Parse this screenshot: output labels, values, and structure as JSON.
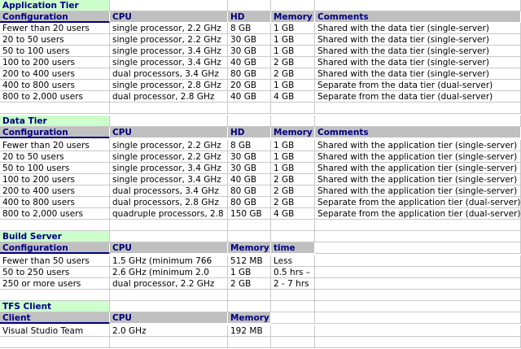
{
  "app_tier": {
    "title": "Application Tier",
    "headers": [
      "Configuration",
      "CPU",
      "HD",
      "Memory",
      "Comments"
    ],
    "rows": [
      [
        "Fewer than 20 users",
        "single processor, 2.2 GHz",
        "8 GB",
        "1 GB",
        "Shared with the data tier (single-server)"
      ],
      [
        "20 to 50 users",
        "single processor, 2.2 GHz",
        "30 GB",
        "1 GB",
        "Shared with the data tier (single-server)"
      ],
      [
        "50 to 100 users",
        "single processor, 3.4 GHz",
        "30 GB",
        "1 GB",
        "Shared with the data tier (single-server)"
      ],
      [
        "100 to 200 users",
        "single processor, 3.4 GHz",
        "40 GB",
        "2 GB",
        "Shared with the data tier (single-server)"
      ],
      [
        "200 to 400 users",
        "dual processors, 3.4 GHz",
        "80 GB",
        "2 GB",
        "Shared with the data tier (single-server)"
      ],
      [
        "400 to 800 users",
        "single processor, 2.8 GHz",
        "20 GB",
        "1 GB",
        "Separate from the data tier (dual-server)"
      ],
      [
        "800 to 2,000 users",
        "dual processor, 2.8 GHz",
        "40 GB",
        "4 GB",
        "Separate from the data tier (dual-server)"
      ]
    ]
  },
  "data_tier": {
    "title": "Data Tier",
    "headers": [
      "Configuration",
      "CPU",
      "HD",
      "Memory",
      "Comments"
    ],
    "rows": [
      [
        "Fewer than 20 users",
        "single processor, 2.2 GHz",
        "8 GB",
        "1 GB",
        "Shared with the application tier (single-server)"
      ],
      [
        "20 to 50 users",
        "single processor, 2.2 GHz",
        "30 GB",
        "1 GB",
        "Shared with the application tier (single-server)"
      ],
      [
        "50 to 100 users",
        "single processor, 3.4 GHz",
        "30 GB",
        "1 GB",
        "Shared with the application tier (single-server)"
      ],
      [
        "100 to 200 users",
        "single processor, 3.4 GHz",
        "40 GB",
        "2 GB",
        "Shared with the application tier (single-server)"
      ],
      [
        "200 to 400 users",
        "dual processors, 3.4 GHz",
        "80 GB",
        "2 GB",
        "Shared with the application tier (single-server)"
      ],
      [
        "400 to 800 users",
        "dual processors, 2.8 GHz",
        "80 GB",
        "2 GB",
        "Separate from the application tier (dual-server)"
      ],
      [
        "800 to 2,000 users",
        "quadruple processors, 2.8",
        "150 GB",
        "4 GB",
        "Separate from the application tier (dual-server)"
      ]
    ]
  },
  "build_server": {
    "title": "Build Server",
    "headers": [
      "Configuration",
      "CPU",
      "Memory",
      "time"
    ],
    "rows": [
      [
        "Fewer than 50 users",
        "1.5 GHz (minimum 766",
        "512 MB",
        "Less"
      ],
      [
        "50 to 250 users",
        "2.6 GHz (minimum 2.0",
        "1 GB",
        "0.5 hrs –"
      ],
      [
        "250 or more users",
        "dual processor, 2.2 GHz",
        "2 GB",
        "2 - 7 hrs"
      ]
    ]
  },
  "tfs_client": {
    "title": "TFS Client",
    "headers": [
      "Client",
      "CPU",
      "Memory"
    ],
    "rows": [
      [
        "Visual Studio Team",
        "2.0 GHz",
        "192 MB"
      ]
    ]
  }
}
